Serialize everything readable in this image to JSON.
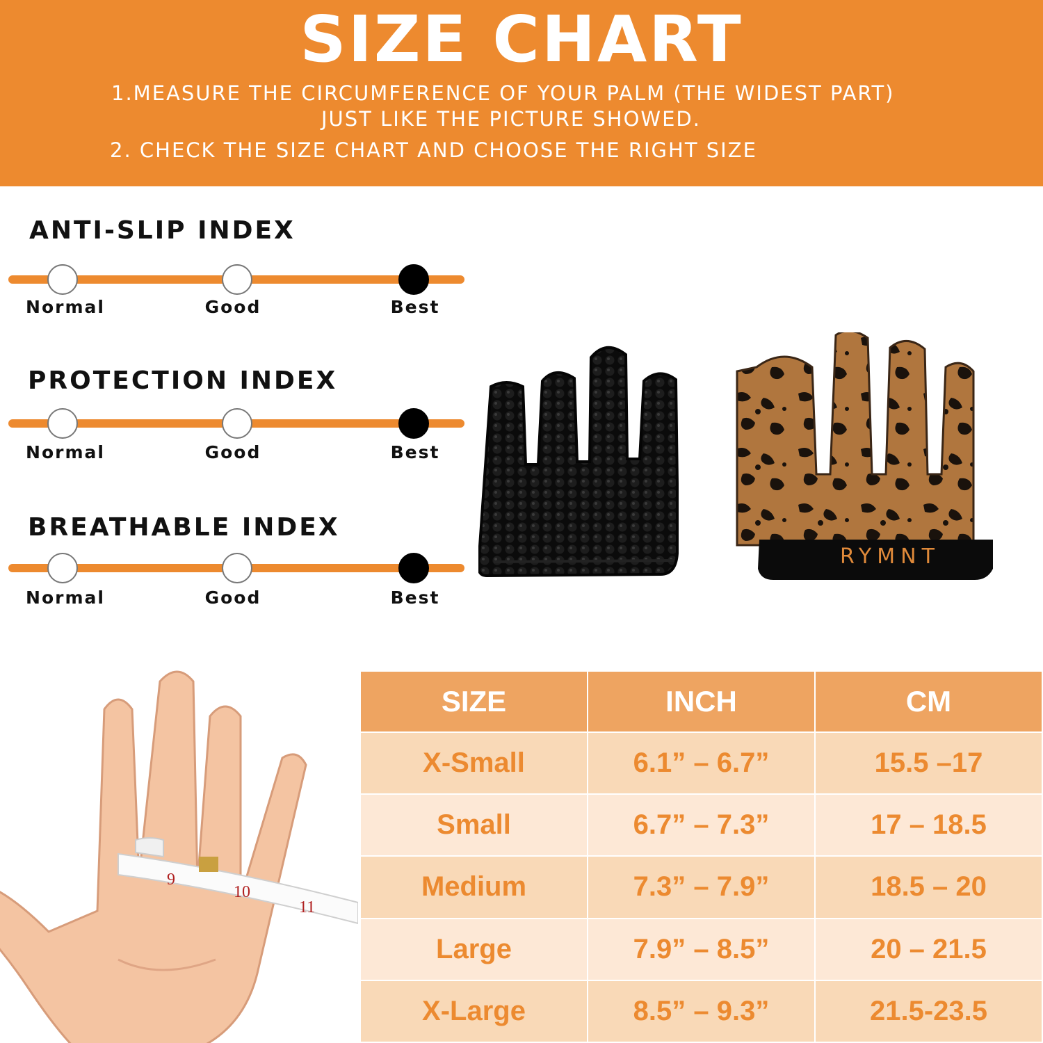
{
  "header": {
    "title": "SIZE CHART",
    "instructions": [
      "1.MEASURE THE CIRCUMFERENCE OF YOUR PALM (THE WIDEST PART)",
      "JUST LIKE THE PICTURE SHOWED.",
      "2. CHECK THE SIZE CHART AND CHOOSE THE RIGHT SIZE"
    ]
  },
  "indexes": [
    {
      "title": "ANTI-SLIP INDEX",
      "levels": [
        "Normal",
        "Good",
        "Best"
      ],
      "selected": "Best"
    },
    {
      "title": "PROTECTION INDEX",
      "levels": [
        "Normal",
        "Good",
        "Best"
      ],
      "selected": "Best"
    },
    {
      "title": "BREATHABLE INDEX",
      "levels": [
        "Normal",
        "Good",
        "Best"
      ],
      "selected": "Best"
    }
  ],
  "product": {
    "brand": "RYMNT"
  },
  "tape": {
    "marks": [
      "9",
      "10",
      "11"
    ]
  },
  "size_table": {
    "headers": [
      "SIZE",
      "INCH",
      "CM"
    ],
    "rows": [
      [
        "X-Small",
        "6.1” – 6.7”",
        "15.5 –17"
      ],
      [
        "Small",
        "6.7” – 7.3”",
        "17 – 18.5"
      ],
      [
        "Medium",
        "7.3” – 7.9”",
        "18.5 – 20"
      ],
      [
        "Large",
        "7.9” – 8.5”",
        "20 – 21.5"
      ],
      [
        "X-Large",
        "8.5” – 9.3”",
        "21.5-23.5"
      ]
    ]
  },
  "colors": {
    "accent": "#ed8a2f",
    "table_header": "#eea461",
    "row_a": "#f9d9b7",
    "row_b": "#fde8d6",
    "table_text": "#ec8a30"
  }
}
